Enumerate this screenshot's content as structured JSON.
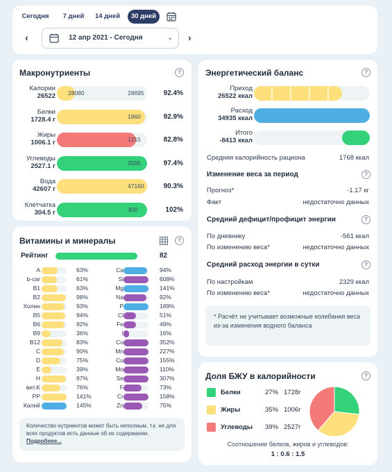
{
  "colors": {
    "yellow": "#fde07b",
    "blue": "#4eaee3",
    "green": "#33d17a",
    "red": "#f47a7a",
    "purple": "#9b59b6",
    "navy": "#2e3d66"
  },
  "period_tabs": [
    {
      "label": "Сегодня",
      "active": false
    },
    {
      "label": "7 дней",
      "active": false
    },
    {
      "label": "14 дней",
      "active": false
    },
    {
      "label": "30 дней",
      "active": true
    }
  ],
  "calendar_icon": "calendar-icon",
  "date_range": {
    "value": "12 апр 2021 - Сегодня"
  },
  "macros": {
    "title": "Макронутриенты",
    "rows": [
      {
        "name": "Калории",
        "value": "26522",
        "in_bar": "28080",
        "target": "28695",
        "percent": "92.4%",
        "color": "yellow",
        "fill": 0.18
      },
      {
        "name": "Белки",
        "value": "1728.4 г",
        "in_bar": "",
        "target": "1860",
        "percent": "92.9%",
        "color": "yellow",
        "fill": 0.98
      },
      {
        "name": "Жиры",
        "value": "1006.1 г",
        "in_bar": "",
        "target": "1215",
        "percent": "82.8%",
        "color": "red",
        "fill": 0.88
      },
      {
        "name": "Углеводы",
        "value": "2527.1 г",
        "in_bar": "",
        "target": "2595",
        "percent": "97.4%",
        "color": "green",
        "fill": 1.0
      },
      {
        "name": "Вода",
        "value": "42607 г",
        "in_bar": "",
        "target": "47160",
        "percent": "90.3%",
        "color": "yellow",
        "fill": 1.0
      },
      {
        "name": "Клетчатка",
        "value": "304.5 г",
        "in_bar": "",
        "target": "300",
        "percent": "102%",
        "color": "green",
        "fill": 1.0
      }
    ]
  },
  "vitamins": {
    "title": "Витамины и минералы",
    "rating_label": "Рейтинг",
    "rating_value": "82",
    "left": [
      {
        "name": "A",
        "pct": "63%",
        "color": "yellow",
        "fill": 0.63
      },
      {
        "name": "b-car",
        "pct": "61%",
        "color": "yellow",
        "fill": 0.61
      },
      {
        "name": "B1",
        "pct": "63%",
        "color": "yellow",
        "fill": 0.63
      },
      {
        "name": "B2",
        "pct": "98%",
        "color": "yellow",
        "fill": 0.98
      },
      {
        "name": "Холин",
        "pct": "93%",
        "color": "yellow",
        "fill": 0.93
      },
      {
        "name": "B5",
        "pct": "94%",
        "color": "yellow",
        "fill": 0.94
      },
      {
        "name": "B6",
        "pct": "92%",
        "color": "yellow",
        "fill": 0.92
      },
      {
        "name": "B9",
        "pct": "36%",
        "color": "yellow",
        "fill": 0.36
      },
      {
        "name": "B12",
        "pct": "83%",
        "color": "yellow",
        "fill": 0.83
      },
      {
        "name": "C",
        "pct": "90%",
        "color": "yellow",
        "fill": 0.9
      },
      {
        "name": "D",
        "pct": "75%",
        "color": "yellow",
        "fill": 0.75
      },
      {
        "name": "E",
        "pct": "39%",
        "color": "yellow",
        "fill": 0.39
      },
      {
        "name": "H",
        "pct": "97%",
        "color": "yellow",
        "fill": 0.97
      },
      {
        "name": "вит.K",
        "pct": "76%",
        "color": "yellow",
        "fill": 0.76
      },
      {
        "name": "PP",
        "pct": "141%",
        "color": "yellow",
        "fill": 1.0
      },
      {
        "name": "Калий",
        "pct": "145%",
        "color": "blue",
        "fill": 1.0
      }
    ],
    "right": [
      {
        "name": "Ca",
        "pct": "94%",
        "color": "blue",
        "fill": 0.94
      },
      {
        "name": "Si",
        "pct": "608%",
        "color": "purple",
        "fill": 1.0
      },
      {
        "name": "Mg",
        "pct": "141%",
        "color": "blue",
        "fill": 1.0
      },
      {
        "name": "Na",
        "pct": "92%",
        "color": "purple",
        "fill": 0.92
      },
      {
        "name": "P",
        "pct": "189%",
        "color": "blue",
        "fill": 1.0
      },
      {
        "name": "Cl",
        "pct": "51%",
        "color": "purple",
        "fill": 0.51
      },
      {
        "name": "Fe",
        "pct": "49%",
        "color": "purple",
        "fill": 0.49
      },
      {
        "name": "I",
        "pct": "16%",
        "color": "purple",
        "fill": 0.16
      },
      {
        "name": "Co",
        "pct": "352%",
        "color": "purple",
        "fill": 1.0
      },
      {
        "name": "Mn",
        "pct": "227%",
        "color": "purple",
        "fill": 1.0
      },
      {
        "name": "Cu",
        "pct": "155%",
        "color": "purple",
        "fill": 1.0
      },
      {
        "name": "Mo",
        "pct": "110%",
        "color": "purple",
        "fill": 1.0
      },
      {
        "name": "Se",
        "pct": "307%",
        "color": "purple",
        "fill": 1.0
      },
      {
        "name": "F",
        "pct": "73%",
        "color": "purple",
        "fill": 0.73
      },
      {
        "name": "Cr",
        "pct": "158%",
        "color": "purple",
        "fill": 1.0
      },
      {
        "name": "Zn",
        "pct": "75%",
        "color": "purple",
        "fill": 0.75
      }
    ],
    "note": "Количество нутриентов может быть неполным, т.к. не для всех продуктов есть данные об их содержании.",
    "note_link": "Подробнее..."
  },
  "energy": {
    "title": "Энергетический баланс",
    "intake_label": "Приход",
    "intake_value": "26522 ккал",
    "intake_fill": 0.76,
    "spend_label": "Расход",
    "spend_value": "34935 ккал",
    "spend_fill": 1.0,
    "total_label": "Итого",
    "total_value": "-8413 ккал",
    "total_fill": 0.24,
    "avg_cal_label": "Средняя калорийность рациона",
    "avg_cal_value": "1768 ккал",
    "weight_title": "Изменение веса за период",
    "forecast_label": "Прогноз*",
    "forecast_value": "-1.17 кг",
    "fact_label": "Факт",
    "fact_value": "недостаточно данных",
    "deficit_title": "Средний дефицит/профицит энергии",
    "by_diary_label": "По дневнику",
    "by_diary_value": "-561 ккал",
    "by_weight_label": "По изменению веса*",
    "by_weight_value": "недостаточно данных",
    "spend_title": "Средний расход энергии в сутки",
    "by_settings_label": "По настройкам",
    "by_settings_value": "2329 ккал",
    "by_weight2_label": "По изменению веса*",
    "by_weight2_value": "недостаточно данных",
    "footnote": "* Расчёт не учитывает возможные колебания веса из-за изменения водного баланса"
  },
  "bju": {
    "title": "Доля БЖУ в калорийности",
    "rows": [
      {
        "name": "Белки",
        "pct": "27%",
        "grams": "1728г",
        "color": "green"
      },
      {
        "name": "Жиры",
        "pct": "35%",
        "grams": "1006г",
        "color": "yellow"
      },
      {
        "name": "Углеводы",
        "pct": "39%",
        "grams": "2527г",
        "color": "red"
      }
    ],
    "ratio_label": "Соотношение белков, жиров и углеводов:",
    "ratio_value": "1 : 0.6 : 1.5"
  }
}
